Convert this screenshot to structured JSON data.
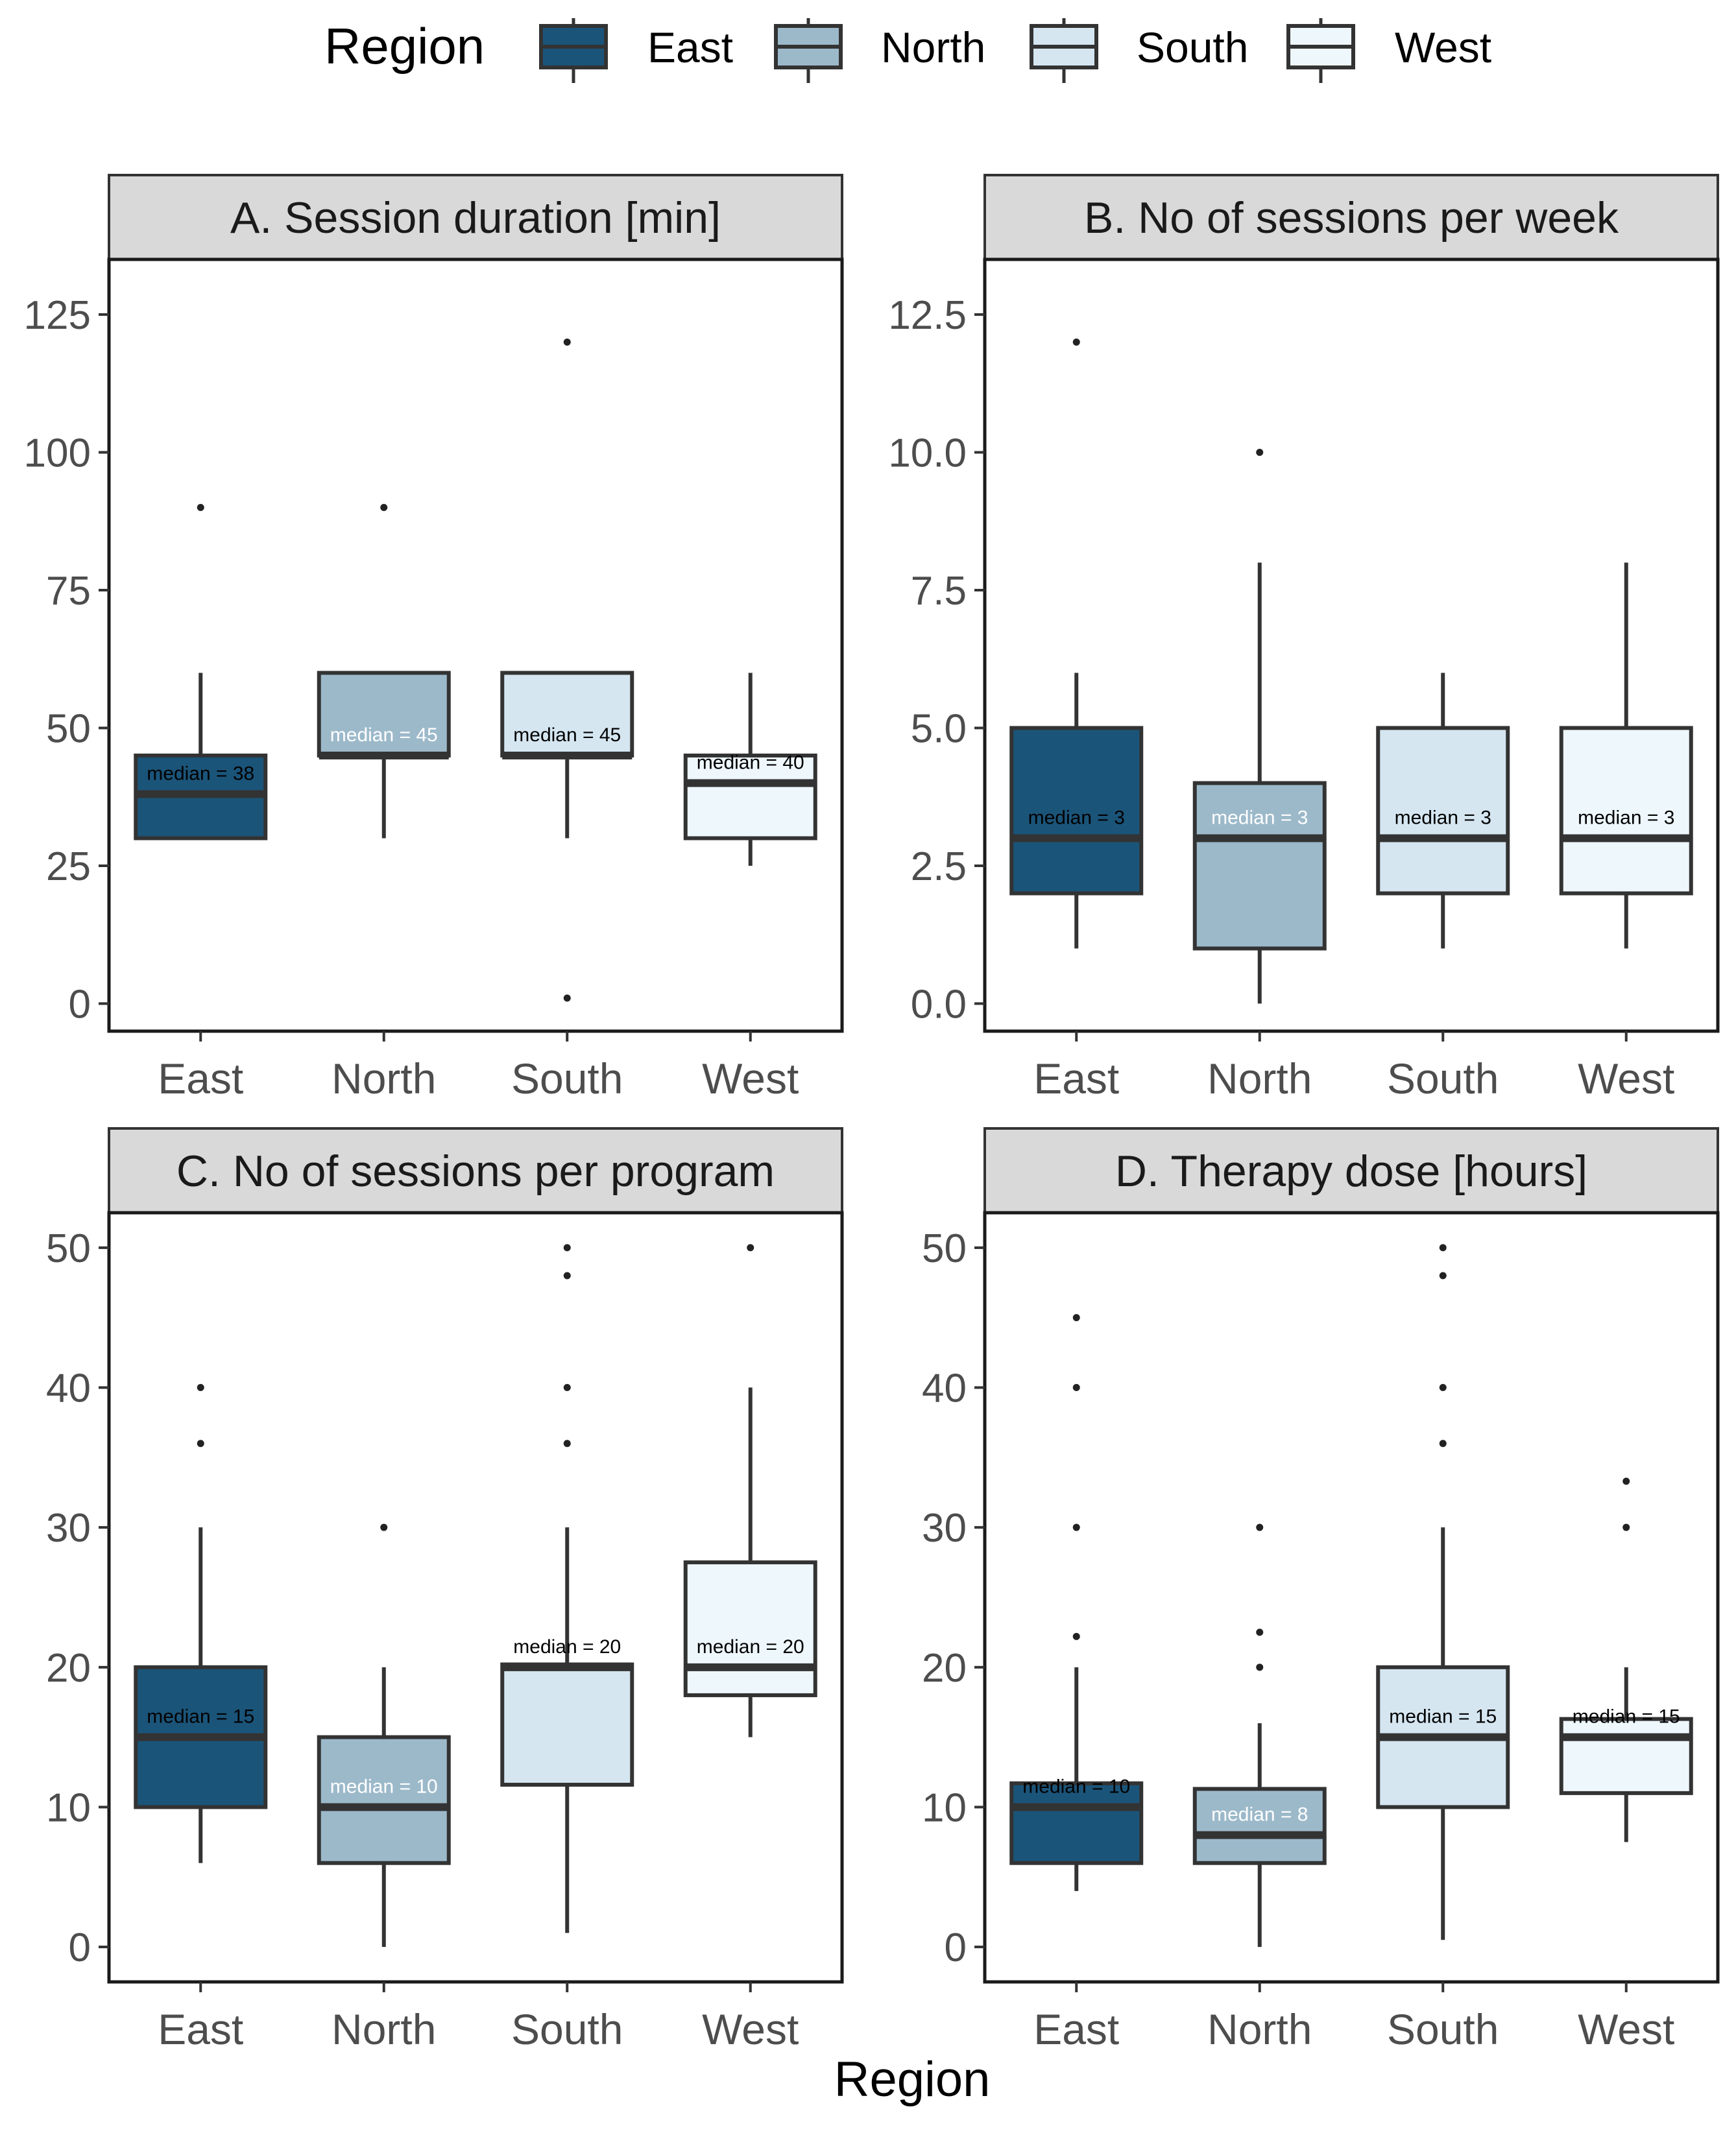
{
  "legend": {
    "title": "Region",
    "items": [
      {
        "label": "East",
        "color": "#1b5479"
      },
      {
        "label": "North",
        "color": "#9cb9ca"
      },
      {
        "label": "South",
        "color": "#d5e6f1"
      },
      {
        "label": "West",
        "color": "#eef7fc"
      }
    ]
  },
  "xlabel": "Region",
  "median_prefix": "median = ",
  "chart_data": [
    {
      "type": "boxplot",
      "title": "A. Session duration [min]",
      "categories": [
        "East",
        "North",
        "South",
        "West"
      ],
      "ylim": [
        -5,
        135
      ],
      "yticks": [
        0,
        25,
        50,
        75,
        100,
        125
      ],
      "ytick_labels": [
        "0",
        "25",
        "50",
        "75",
        "100",
        "125"
      ],
      "boxes": [
        {
          "q1": 30,
          "median": 38,
          "q3": 45,
          "whisker_low": 30,
          "whisker_high": 60,
          "outliers": [
            90
          ],
          "median_label": "38",
          "label_color": "#000000"
        },
        {
          "q1": 45,
          "median": 45,
          "q3": 60,
          "whisker_low": 30,
          "whisker_high": 60,
          "outliers": [
            90
          ],
          "median_label": "45",
          "label_color": "#ffffff"
        },
        {
          "q1": 45,
          "median": 45,
          "q3": 60,
          "whisker_low": 30,
          "whisker_high": 60,
          "outliers": [
            1,
            120
          ],
          "median_label": "45",
          "label_color": "#000000"
        },
        {
          "q1": 30,
          "median": 40,
          "q3": 45,
          "whisker_low": 25,
          "whisker_high": 60,
          "outliers": [],
          "median_label": "40",
          "label_color": "#000000"
        }
      ]
    },
    {
      "type": "boxplot",
      "title": "B. No of sessions per week",
      "categories": [
        "East",
        "North",
        "South",
        "West"
      ],
      "ylim": [
        -0.5,
        13.5
      ],
      "yticks": [
        0,
        2.5,
        5,
        7.5,
        10,
        12.5
      ],
      "ytick_labels": [
        "0.0",
        "2.5",
        "5.0",
        "7.5",
        "10.0",
        "12.5"
      ],
      "boxes": [
        {
          "q1": 2,
          "median": 3,
          "q3": 5,
          "whisker_low": 1,
          "whisker_high": 6,
          "outliers": [
            12
          ],
          "median_label": "3",
          "label_color": "#000000"
        },
        {
          "q1": 1,
          "median": 3,
          "q3": 4,
          "whisker_low": 0,
          "whisker_high": 8,
          "outliers": [
            10
          ],
          "median_label": "3",
          "label_color": "#ffffff"
        },
        {
          "q1": 2,
          "median": 3,
          "q3": 5,
          "whisker_low": 1,
          "whisker_high": 6,
          "outliers": [],
          "median_label": "3",
          "label_color": "#000000"
        },
        {
          "q1": 2,
          "median": 3,
          "q3": 5,
          "whisker_low": 1,
          "whisker_high": 8,
          "outliers": [],
          "median_label": "3",
          "label_color": "#000000"
        }
      ]
    },
    {
      "type": "boxplot",
      "title": "C. No of sessions per program",
      "categories": [
        "East",
        "North",
        "South",
        "West"
      ],
      "ylim": [
        -2.5,
        52.5
      ],
      "yticks": [
        0,
        10,
        20,
        30,
        40,
        50
      ],
      "ytick_labels": [
        "0",
        "10",
        "20",
        "30",
        "40",
        "50"
      ],
      "boxes": [
        {
          "q1": 10,
          "median": 15,
          "q3": 20,
          "whisker_low": 6,
          "whisker_high": 30,
          "outliers": [
            36,
            40
          ],
          "median_label": "15",
          "label_color": "#000000"
        },
        {
          "q1": 6,
          "median": 10,
          "q3": 15,
          "whisker_low": 0,
          "whisker_high": 20,
          "outliers": [
            30
          ],
          "median_label": "10",
          "label_color": "#ffffff"
        },
        {
          "q1": 11.6,
          "median": 20,
          "q3": 20.2,
          "whisker_low": 1,
          "whisker_high": 30,
          "outliers": [
            36,
            40,
            48,
            50
          ],
          "median_label": "20",
          "label_color": "#000000"
        },
        {
          "q1": 18,
          "median": 20,
          "q3": 27.5,
          "whisker_low": 15,
          "whisker_high": 40,
          "outliers": [
            50
          ],
          "median_label": "20",
          "label_color": "#000000"
        }
      ]
    },
    {
      "type": "boxplot",
      "title": "D. Therapy dose [hours]",
      "categories": [
        "East",
        "North",
        "South",
        "West"
      ],
      "ylim": [
        -2.5,
        52.5
      ],
      "yticks": [
        0,
        10,
        20,
        30,
        40,
        50
      ],
      "ytick_labels": [
        "0",
        "10",
        "20",
        "30",
        "40",
        "50"
      ],
      "boxes": [
        {
          "q1": 6,
          "median": 10,
          "q3": 11.7,
          "whisker_low": 4,
          "whisker_high": 20,
          "outliers": [
            22.2,
            30,
            40,
            45
          ],
          "median_label": "10",
          "label_color": "#000000"
        },
        {
          "q1": 6,
          "median": 8,
          "q3": 11.3,
          "whisker_low": 0,
          "whisker_high": 16,
          "outliers": [
            20,
            22.5,
            30
          ],
          "median_label": "8",
          "label_color": "#ffffff"
        },
        {
          "q1": 10,
          "median": 15,
          "q3": 20,
          "whisker_low": 0.5,
          "whisker_high": 30,
          "outliers": [
            36,
            40,
            48,
            50
          ],
          "median_label": "15",
          "label_color": "#000000"
        },
        {
          "q1": 11,
          "median": 15,
          "q3": 16.3,
          "whisker_low": 7.5,
          "whisker_high": 20,
          "outliers": [
            30,
            33.3
          ],
          "median_label": "15",
          "label_color": "#000000"
        }
      ]
    }
  ]
}
